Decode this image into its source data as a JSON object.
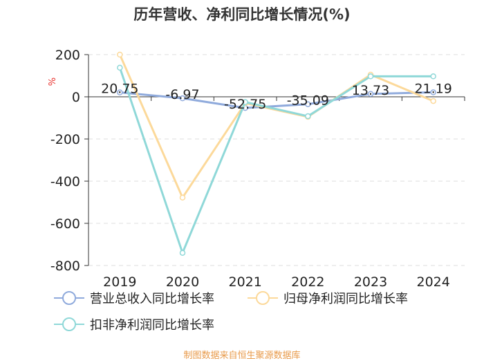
{
  "chart_data": {
    "type": "line",
    "title": "历年营收、净利同比增长情况(%)",
    "y_unit": "%",
    "categories": [
      "2019",
      "2020",
      "2021",
      "2022",
      "2023",
      "2024"
    ],
    "ylim": [
      -800,
      200
    ],
    "yticks": [
      "200",
      "0",
      "-200",
      "-400",
      "-600",
      "-800"
    ],
    "grid": true,
    "legend_position": "bottom",
    "series": [
      {
        "name": "营业总收入同比增长率",
        "values": [
          20.75,
          -6.97,
          -52.75,
          -35.09,
          13.73,
          21.19
        ],
        "color": "#8faadc",
        "labels": [
          "20.75",
          "-6.97",
          "-52.75",
          "-35.09",
          "13.73",
          "21.19"
        ]
      },
      {
        "name": "归母净利润同比增长率",
        "values": [
          200,
          -478,
          -30,
          -95,
          105,
          -20
        ],
        "color": "#fcd99a"
      },
      {
        "name": "扣非净利润同比增长率",
        "values": [
          138,
          -740,
          -25,
          -92,
          97,
          97
        ],
        "color": "#8fd8d8"
      }
    ]
  },
  "source_text": "制图数据来自恒生聚源数据库"
}
